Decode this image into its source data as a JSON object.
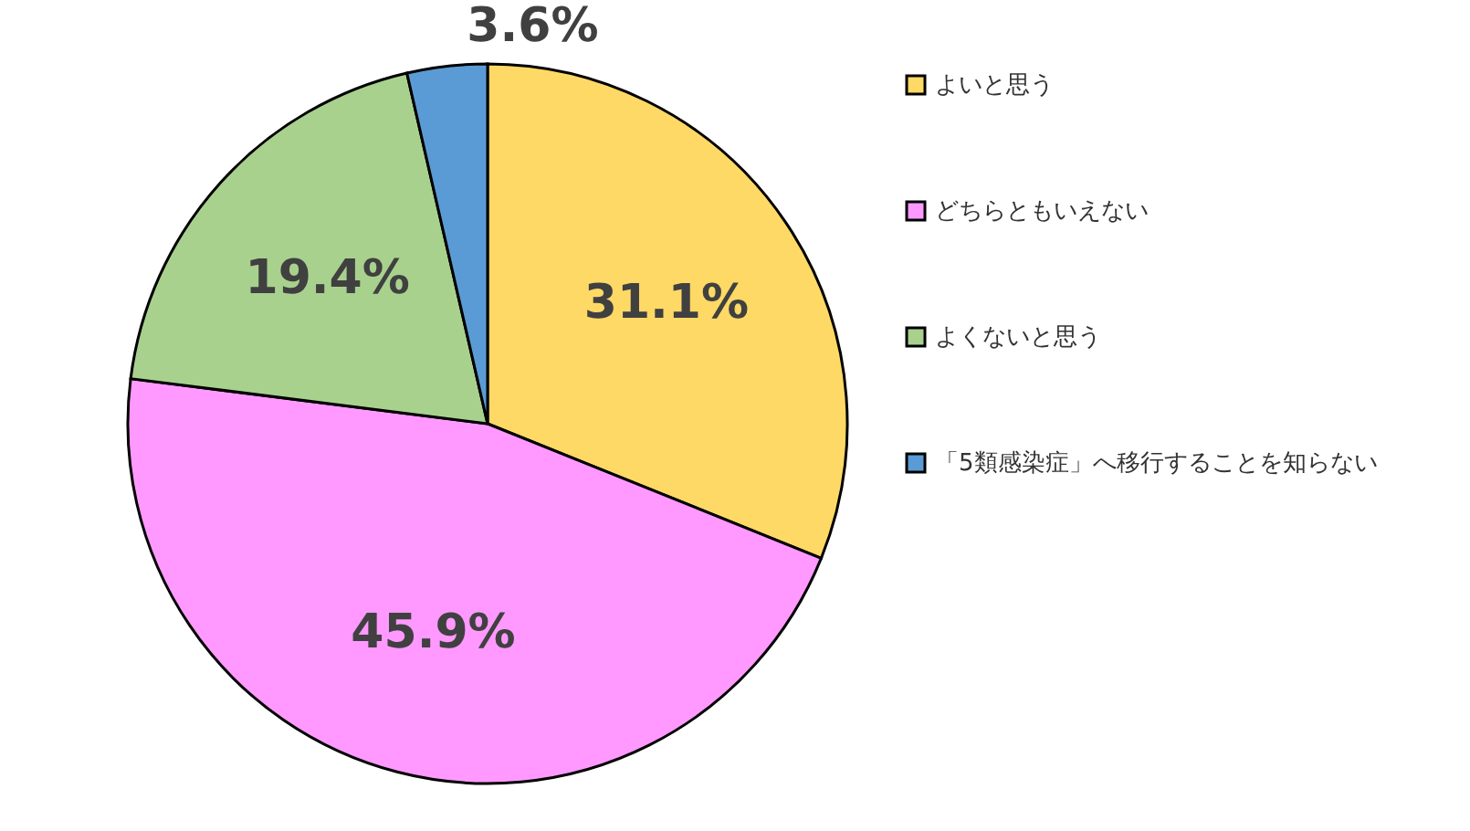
{
  "chart_data": {
    "type": "pie",
    "categories": [
      "よいと思う",
      "どちらともいえない",
      "よくないと思う",
      "「5類感染症」へ移行することを知らない"
    ],
    "values": [
      31.1,
      45.9,
      19.4,
      3.6
    ],
    "value_labels": [
      "31.1%",
      "45.9%",
      "19.4%",
      "3.6%"
    ],
    "colors": [
      "#ffd966",
      "#ff99ff",
      "#a9d18e",
      "#5b9bd5"
    ],
    "legend": "right"
  }
}
